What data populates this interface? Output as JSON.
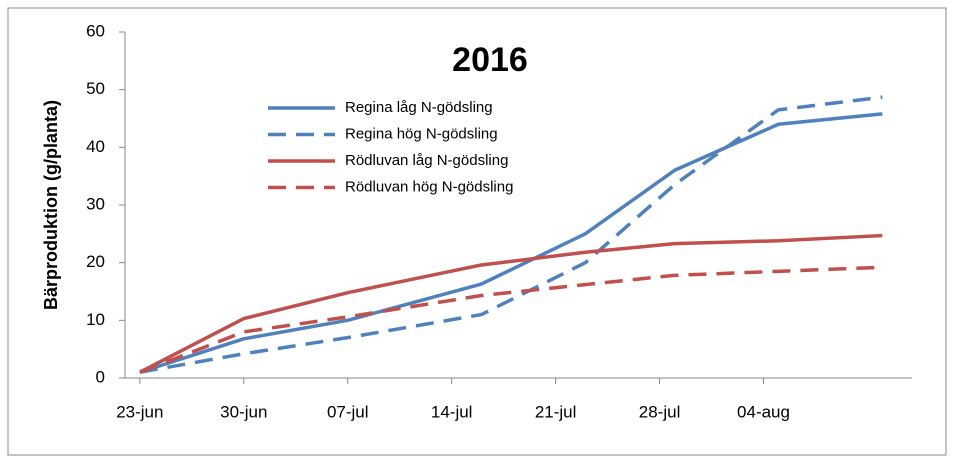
{
  "chart_data": {
    "type": "line",
    "title": "2016",
    "y_label": "Bärproduktion  (g/planta)",
    "x": [
      "2016-06-23",
      "2016-06-30",
      "2016-07-07",
      "2016-07-16",
      "2016-07-23",
      "2016-07-29",
      "2016-08-05",
      "2016-08-12"
    ],
    "xlim": [
      "2016-06-22",
      "2016-08-14"
    ],
    "xticks": [
      {
        "value": "2016-06-23",
        "label": "23-jun"
      },
      {
        "value": "2016-06-30",
        "label": "30-jun"
      },
      {
        "value": "2016-07-07",
        "label": "07-jul"
      },
      {
        "value": "2016-07-14",
        "label": "14-jul"
      },
      {
        "value": "2016-07-21",
        "label": "21-jul"
      },
      {
        "value": "2016-07-28",
        "label": "28-jul"
      },
      {
        "value": "2016-08-04",
        "label": "04-aug"
      }
    ],
    "ylim": [
      0,
      60
    ],
    "yticks": [
      0,
      10,
      20,
      30,
      40,
      50,
      60
    ],
    "series": [
      {
        "name": "Regina låg N-gödsling",
        "color": "#4f81bd",
        "dashed": false,
        "values": [
          1,
          6.8,
          10,
          16.3,
          25,
          36,
          44,
          45.8
        ]
      },
      {
        "name": "Regina hög N-gödsling",
        "color": "#4f81bd",
        "dashed": true,
        "values": [
          1,
          4.2,
          7,
          11,
          20,
          33.5,
          46.5,
          48.7
        ]
      },
      {
        "name": "Rödluvan låg N-gödsling",
        "color": "#c0504d",
        "dashed": false,
        "values": [
          1,
          10.3,
          14.8,
          19.6,
          21.8,
          23.3,
          23.8,
          24.7
        ]
      },
      {
        "name": "Rödluvan hög N-gödsling",
        "color": "#c0504d",
        "dashed": true,
        "values": [
          1,
          8,
          10.6,
          14.3,
          16.2,
          17.8,
          18.5,
          19.2
        ]
      }
    ]
  }
}
